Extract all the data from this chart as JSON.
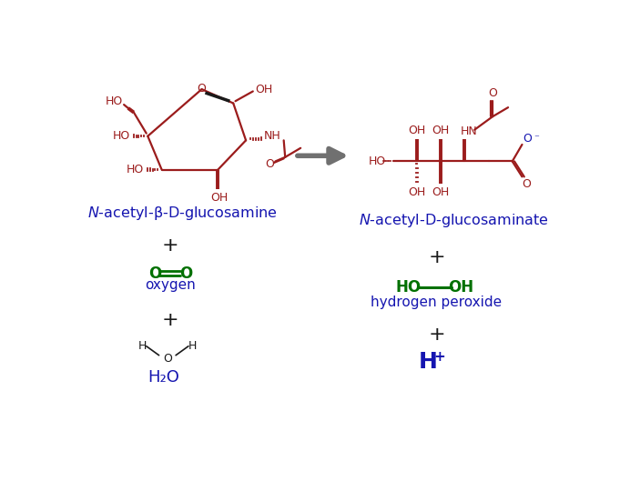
{
  "bg_color": "#ffffff",
  "dark_red": "#9B1C1C",
  "blue": "#1515b0",
  "green": "#007000",
  "gray": "#707070",
  "black": "#1a1a1a",
  "figsize": [
    6.81,
    5.29
  ],
  "dpi": 100,
  "beta": "β",
  "emdash": "—",
  "superscript_minus": "⁻",
  "left_name": "N-acetyl-β-D-glucosamine",
  "right_name": "N-acetyl-D-glucosaminate",
  "oxygen_label": "oxygen",
  "h2o2_label": "hydrogen peroxide",
  "h2o_label": "H₂O",
  "plus": "+"
}
